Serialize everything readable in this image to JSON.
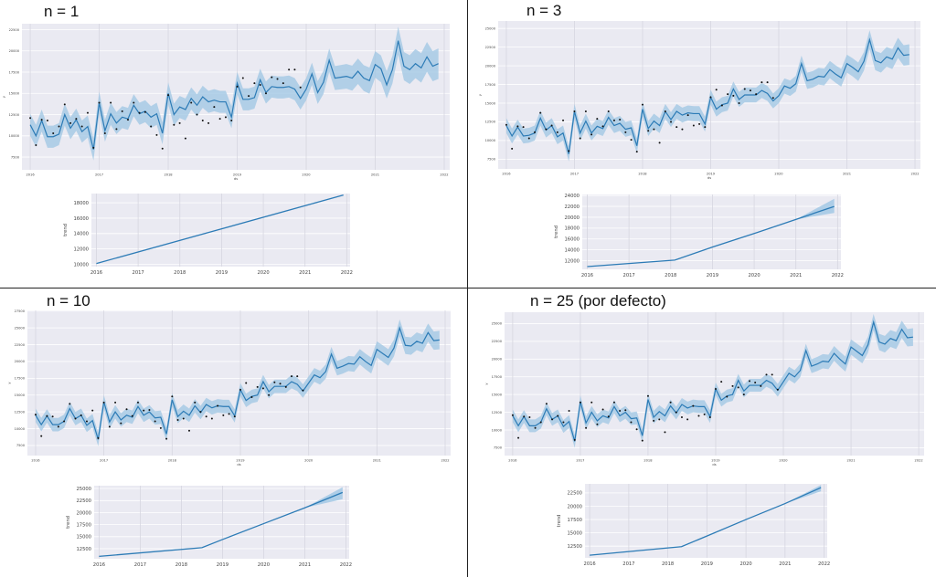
{
  "chart_data": [
    {
      "title": "n = 1",
      "type": "line",
      "forecast": {
        "xlabel": "ds",
        "ylabel": "y",
        "ylim": [
          6000,
          23200
        ],
        "yticks": [
          7500,
          10000,
          12500,
          15000,
          17500,
          20000,
          22500
        ],
        "xticks": [
          "2016",
          "2017",
          "2018",
          "2019",
          "2020",
          "2021",
          "2022"
        ],
        "interval_halfwidth": 1300,
        "yhat": [
          11300,
          10000,
          11800,
          9900,
          9900,
          10200,
          12500,
          10900,
          11900,
          10500,
          11100,
          8400,
          13900,
          10600,
          12600,
          11500,
          12200,
          12000,
          13600,
          12600,
          12900,
          12200,
          12600,
          10300,
          15000,
          12500,
          13400,
          13100,
          14400,
          13600,
          14600,
          14000,
          14200,
          14000,
          14000,
          12200,
          16200,
          14300,
          14300,
          14500,
          16600,
          15100,
          15800,
          15700,
          15700,
          15800,
          15500,
          14400,
          15500,
          17300,
          15100,
          16300,
          18900,
          16800,
          16900,
          17000,
          16800,
          17600,
          16800,
          16500,
          18400,
          17900,
          16000,
          17800,
          21200,
          18200,
          17800,
          18500,
          18000,
          19300,
          18200,
          18500
        ]
      },
      "trend": {
        "ylabel": "trend",
        "ylim": [
          9700,
          19200
        ],
        "yticks": [
          10000,
          12000,
          14000,
          16000,
          18000
        ],
        "xticks": [
          "2016",
          "2017",
          "2018",
          "2019",
          "2020",
          "2021",
          "2022"
        ],
        "points": [
          [
            2016.0,
            10100
          ],
          [
            2021.92,
            19000
          ]
        ],
        "band_end": [
          19000,
          19000
        ]
      }
    },
    {
      "title": "n = 3",
      "type": "line",
      "forecast": {
        "xlabel": "ds",
        "ylabel": "y",
        "ylim": [
          6200,
          26000
        ],
        "yticks": [
          7500,
          10000,
          12500,
          15000,
          17500,
          20000,
          22500,
          25000
        ],
        "xticks": [
          "2016",
          "2017",
          "2018",
          "2019",
          "2020",
          "2021",
          "2022"
        ],
        "interval_halfwidth": 1000,
        "yhat": [
          12000,
          10600,
          11800,
          10600,
          10700,
          11000,
          13000,
          11400,
          12000,
          10500,
          11000,
          8200,
          13900,
          11000,
          12600,
          11000,
          11900,
          11600,
          13100,
          12000,
          12300,
          11500,
          11700,
          9300,
          14200,
          11600,
          12600,
          12000,
          13900,
          12800,
          13900,
          13400,
          13700,
          13600,
          13600,
          12200,
          15800,
          14200,
          14800,
          15000,
          16900,
          15500,
          16100,
          16100,
          16100,
          16700,
          16300,
          15300,
          16000,
          17300,
          17000,
          17600,
          20300,
          18000,
          18200,
          18600,
          18500,
          19500,
          18900,
          18400,
          20300,
          19800,
          19200,
          20600,
          23500,
          20700,
          20400,
          21200,
          20900,
          22400,
          21400,
          21500
        ]
      },
      "trend": {
        "ylabel": "trend",
        "ylim": [
          10400,
          24200
        ],
        "yticks": [
          12000,
          14000,
          16000,
          18000,
          20000,
          22000,
          24000
        ],
        "xticks": [
          "2016",
          "2017",
          "2018",
          "2019",
          "2020",
          "2021",
          "2022"
        ],
        "points": [
          [
            2016.0,
            10900
          ],
          [
            2018.1,
            12100
          ],
          [
            2019.0,
            14500
          ],
          [
            2020.0,
            17000
          ],
          [
            2021.0,
            19600
          ],
          [
            2021.92,
            22000
          ]
        ],
        "band_end": [
          20800,
          23400
        ]
      }
    },
    {
      "title": "n = 10",
      "type": "line",
      "forecast": {
        "xlabel": "ds",
        "ylabel": "y",
        "ylim": [
          6000,
          27600
        ],
        "yticks": [
          7500,
          10000,
          12500,
          15000,
          17500,
          20000,
          22500,
          25000,
          27500
        ],
        "xticks": [
          "2016",
          "2017",
          "2018",
          "2019",
          "2020",
          "2021",
          "2022"
        ],
        "interval_halfwidth": 1000,
        "yhat": [
          12000,
          10600,
          11900,
          10600,
          10600,
          11100,
          13000,
          11500,
          12000,
          10500,
          11200,
          8400,
          14000,
          11000,
          12500,
          11300,
          12000,
          11700,
          13300,
          12000,
          12500,
          11600,
          11700,
          9200,
          14300,
          11800,
          12600,
          12000,
          13400,
          12400,
          13600,
          13100,
          13400,
          13300,
          13300,
          11900,
          15800,
          14200,
          14800,
          15000,
          17000,
          15500,
          16300,
          16300,
          16300,
          17000,
          16600,
          15600,
          16800,
          18000,
          17600,
          18500,
          21100,
          19000,
          19300,
          19700,
          19600,
          20700,
          20000,
          19400,
          21800,
          21200,
          20600,
          22000,
          25000,
          22400,
          22300,
          23000,
          22700,
          24300,
          23100,
          23200
        ]
      },
      "trend": {
        "ylabel": "trend",
        "ylim": [
          10400,
          25600
        ],
        "yticks": [
          12500,
          15000,
          17500,
          20000,
          22500,
          25000
        ],
        "xticks": [
          "2016",
          "2017",
          "2018",
          "2019",
          "2020",
          "2021",
          "2022"
        ],
        "points": [
          [
            2016.0,
            10900
          ],
          [
            2018.5,
            12700
          ],
          [
            2019.0,
            14400
          ],
          [
            2020.0,
            17700
          ],
          [
            2021.0,
            21000
          ],
          [
            2021.92,
            24200
          ]
        ],
        "band_end": [
          22800,
          25300
        ]
      }
    },
    {
      "title": "n = 25 (por defecto)",
      "type": "line",
      "forecast": {
        "xlabel": "ds",
        "ylabel": "y",
        "ylim": [
          6400,
          26600
        ],
        "yticks": [
          7500,
          10000,
          12500,
          15000,
          17500,
          20000,
          22500,
          25000
        ],
        "xticks": [
          "2016",
          "2017",
          "2018",
          "2019",
          "2020",
          "2021",
          "2022"
        ],
        "interval_halfwidth": 900,
        "yhat": [
          12000,
          10600,
          11900,
          10600,
          10600,
          11100,
          13000,
          11500,
          12000,
          10500,
          11200,
          8400,
          14000,
          11000,
          12500,
          11300,
          12000,
          11700,
          13300,
          12000,
          12500,
          11600,
          11700,
          9200,
          14300,
          11800,
          12600,
          12000,
          13400,
          12400,
          13600,
          13100,
          13400,
          13300,
          13300,
          11900,
          15800,
          14200,
          14800,
          15000,
          17000,
          15500,
          16300,
          16300,
          16300,
          17000,
          16600,
          15600,
          16800,
          18000,
          17500,
          18400,
          21200,
          19000,
          19300,
          19700,
          19600,
          20800,
          20000,
          19300,
          21700,
          21100,
          20500,
          22000,
          25200,
          22400,
          22100,
          22900,
          22600,
          24200,
          23000,
          23100
        ]
      },
      "trend": {
        "ylabel": "trend",
        "ylim": [
          10300,
          24200
        ],
        "yticks": [
          12500,
          15000,
          17500,
          20000,
          22500
        ],
        "xticks": [
          "2016",
          "2017",
          "2018",
          "2019",
          "2020",
          "2021",
          "2022"
        ],
        "points": [
          [
            2016.0,
            10800
          ],
          [
            2018.35,
            12400
          ],
          [
            2019.0,
            14400
          ],
          [
            2020.0,
            17500
          ],
          [
            2021.0,
            20500
          ],
          [
            2021.92,
            23500
          ]
        ],
        "band_end": [
          22800,
          24000
        ]
      }
    }
  ],
  "observed": {
    "start": "2016-01",
    "frequency": "monthly",
    "y": [
      12100,
      8900,
      11900,
      11800,
      10300,
      11100,
      13700,
      11500,
      12000,
      11100,
      12700,
      8600,
      13900,
      10300,
      13900,
      10800,
      12900,
      11900,
      13900,
      12700,
      12800,
      11100,
      10100,
      8500,
      14800,
      11300,
      11500,
      9700,
      13900,
      12500,
      11800,
      11500,
      13400,
      12000,
      12200,
      11800,
      15800,
      16800,
      14700,
      16200,
      16000,
      15000,
      16900,
      16700,
      16200,
      17800,
      17800,
      15700
    ]
  },
  "colors": {
    "line": "#2c7bb6",
    "band": "#9ec5e3",
    "background": "#eaeaf2",
    "grid": "#ffffff",
    "points": "#111111"
  }
}
